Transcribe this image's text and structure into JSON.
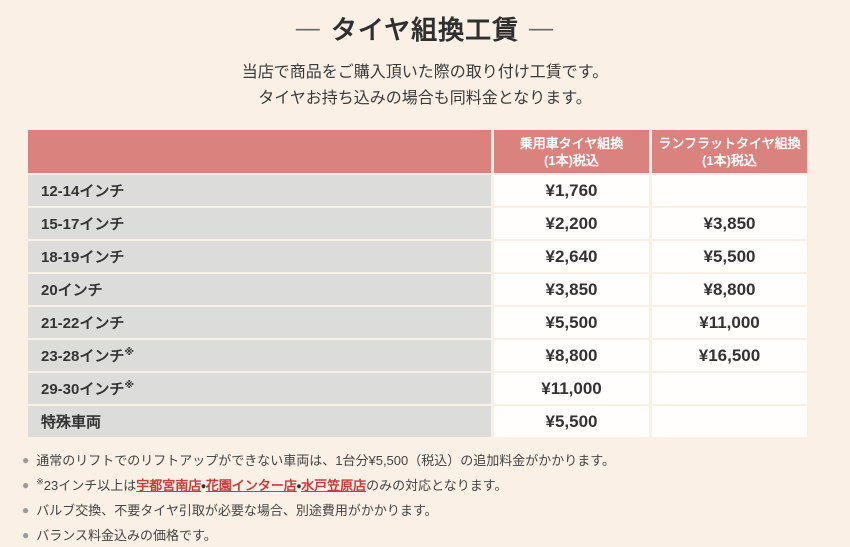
{
  "theme": {
    "page_background": "#faf0e5",
    "header_background": "#d9827e",
    "label_cell_background": "#dcdcdb",
    "value_cell_background": "#fffefd",
    "text_color": "#333333",
    "header_text_color": "#ffffff",
    "link_color": "#c53d3d",
    "bullet_color": "#9b9b9b"
  },
  "page": {
    "title": "タイヤ組換工賃",
    "title_dash": "―",
    "subtitle_line1": "当店で商品をご購入頂いた際の取り付け工賃です。",
    "subtitle_line2": "タイヤお持ち込みの場合も同料金となります。"
  },
  "table": {
    "columns": {
      "passenger": {
        "line1": "乗用車タイヤ組換",
        "line2": "(1本)税込"
      },
      "runflat": {
        "line1": "ランフラットタイヤ組換",
        "line2": "(1本)税込"
      }
    },
    "rows": [
      {
        "label": "12-14インチ",
        "sup": "",
        "passenger": "¥1,760",
        "runflat": ""
      },
      {
        "label": "15-17インチ",
        "sup": "",
        "passenger": "¥2,200",
        "runflat": "¥3,850"
      },
      {
        "label": "18-19インチ",
        "sup": "",
        "passenger": "¥2,640",
        "runflat": "¥5,500"
      },
      {
        "label": "20インチ",
        "sup": "",
        "passenger": "¥3,850",
        "runflat": "¥8,800"
      },
      {
        "label": "21-22インチ",
        "sup": "",
        "passenger": "¥5,500",
        "runflat": "¥11,000"
      },
      {
        "label": "23-28インチ",
        "sup": "※",
        "passenger": "¥8,800",
        "runflat": "¥16,500"
      },
      {
        "label": "29-30インチ",
        "sup": "※",
        "passenger": "¥11,000",
        "runflat": ""
      },
      {
        "label": "特殊車両",
        "sup": "",
        "passenger": "¥5,500",
        "runflat": ""
      }
    ]
  },
  "notes": {
    "bullet": "●",
    "items": [
      {
        "text": "通常のリフトでのリフトアップができない車両は、1台分¥5,500（税込）の追加料金がかかります。"
      },
      {
        "sup": "※",
        "pre": "23インチ以上は",
        "link1": "宇都宮南店",
        "sep": "・",
        "link2": "花園インター店",
        "link3": "水戸笠原店",
        "post": "のみの対応となります。"
      },
      {
        "text": "バルブ交換、不要タイヤ引取が必要な場合、別途費用がかかります。"
      },
      {
        "text": "バランス料金込みの価格です。"
      }
    ]
  }
}
